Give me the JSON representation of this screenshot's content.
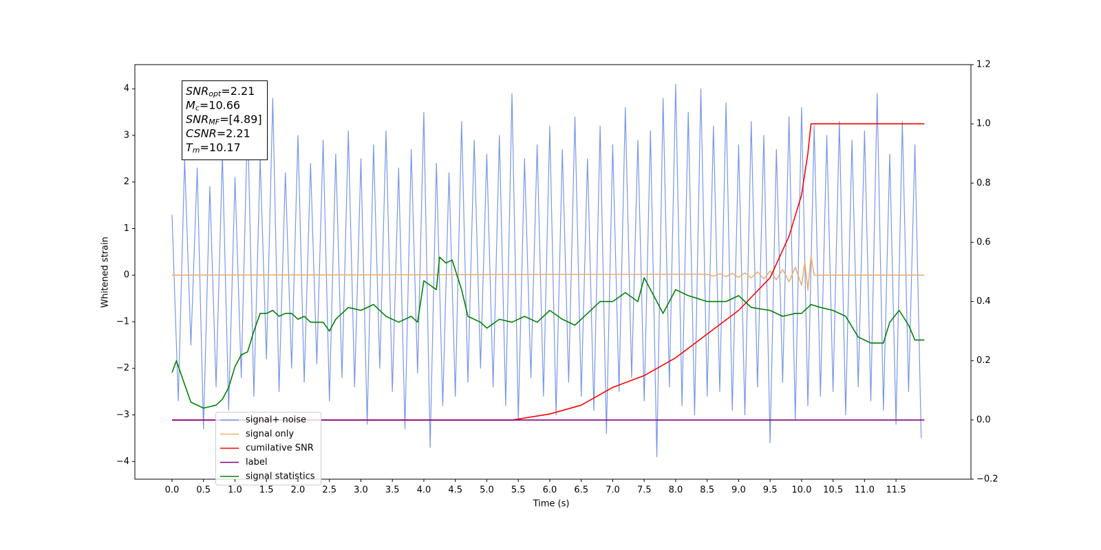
{
  "chart_data": {
    "type": "line",
    "x_label": "Time (s)",
    "y_label": "Whitened strain",
    "xlim": [
      -0.59,
      12.69
    ],
    "ylim": [
      -4.38,
      4.52
    ],
    "y2lim": [
      -0.2,
      1.2
    ],
    "xticks": [
      {
        "value": 0,
        "label": "0.0"
      },
      0.5,
      {
        "value": 1,
        "label": "1.0"
      },
      1.5,
      {
        "value": 2,
        "label": "2.0"
      },
      2.5,
      {
        "value": 3,
        "label": "3.0"
      },
      3.5,
      {
        "value": 4,
        "label": "4.0"
      },
      4.5,
      {
        "value": 5,
        "label": "5.0"
      },
      5.5,
      {
        "value": 6,
        "label": "6.0"
      },
      6.5,
      {
        "value": 7,
        "label": "7.0"
      },
      7.5,
      {
        "value": 8,
        "label": "8.0"
      },
      8.5,
      {
        "value": 9,
        "label": "9.0"
      },
      9.5,
      {
        "value": 10,
        "label": "10.0"
      },
      10.5,
      {
        "value": 11,
        "label": "11.0"
      },
      11.5
    ],
    "yticks": [
      {
        "value": -4,
        "label": "−4"
      },
      {
        "value": -3,
        "label": "−3"
      },
      {
        "value": -2,
        "label": "−2"
      },
      {
        "value": -1,
        "label": "−1"
      },
      0,
      1,
      2,
      3,
      4
    ],
    "y2ticks": [
      {
        "value": -0.2,
        "label": "−0.2"
      },
      {
        "value": 0,
        "label": "0.0"
      },
      0.2,
      0.4,
      0.6,
      0.8,
      {
        "value": 1,
        "label": "1.0"
      },
      1.2
    ],
    "annotations": [
      {
        "symbol": "SNR",
        "subscript": "opt",
        "text": "=2.21"
      },
      {
        "symbol": "M",
        "subscript": "c",
        "text": "=10.66"
      },
      {
        "symbol": "SNR",
        "subscript": "MF",
        "text": "=[4.89]"
      },
      {
        "symbol": "CSNR",
        "text": "=2.21"
      },
      {
        "symbol": "T",
        "subscript": "m",
        "text": "=10.17"
      }
    ],
    "series": [
      {
        "name": "signal+ noise",
        "color": "#7896e8",
        "x": [
          0.0,
          0.1,
          0.2,
          0.3,
          0.4,
          0.5,
          0.6,
          0.7,
          0.8,
          0.9,
          1.0,
          1.1,
          1.2,
          1.3,
          1.4,
          1.5,
          1.6,
          1.7,
          1.8,
          1.9,
          2.0,
          2.1,
          2.2,
          2.3,
          2.4,
          2.5,
          2.6,
          2.7,
          2.8,
          2.9,
          3.0,
          3.1,
          3.2,
          3.3,
          3.4,
          3.5,
          3.6,
          3.7,
          3.8,
          3.9,
          4.0,
          4.1,
          4.2,
          4.3,
          4.4,
          4.5,
          4.6,
          4.7,
          4.8,
          4.9,
          5.0,
          5.1,
          5.2,
          5.3,
          5.4,
          5.5,
          5.6,
          5.7,
          5.8,
          5.9,
          6.0,
          6.1,
          6.2,
          6.3,
          6.4,
          6.5,
          6.6,
          6.7,
          6.8,
          6.9,
          7.0,
          7.1,
          7.2,
          7.3,
          7.4,
          7.5,
          7.6,
          7.7,
          7.8,
          7.9,
          8.0,
          8.1,
          8.2,
          8.3,
          8.4,
          8.5,
          8.6,
          8.7,
          8.8,
          8.9,
          9.0,
          9.1,
          9.2,
          9.3,
          9.4,
          9.5,
          9.6,
          9.7,
          9.8,
          9.9,
          10.0,
          10.1,
          10.2,
          10.3,
          10.4,
          10.5,
          10.6,
          10.7,
          10.8,
          10.9,
          11.0,
          11.1,
          11.2,
          11.3,
          11.4,
          11.5,
          11.6,
          11.7,
          11.8,
          11.9
        ],
        "values": [
          1.3,
          -2.7,
          2.5,
          -1.5,
          2.3,
          -3.3,
          1.9,
          -2.4,
          2.6,
          -2.9,
          2.1,
          -2.2,
          3.4,
          -2.6,
          2.5,
          -1.8,
          3.8,
          -2.5,
          2.2,
          -2.0,
          3.0,
          -2.3,
          2.4,
          -1.9,
          2.9,
          -2.7,
          2.6,
          -2.2,
          3.1,
          -2.4,
          2.5,
          -3.2,
          2.8,
          -2.0,
          3.1,
          -2.5,
          2.3,
          -3.3,
          2.7,
          -2.1,
          3.5,
          -3.7,
          2.4,
          -2.8,
          2.2,
          -2.6,
          3.3,
          -2.3,
          2.9,
          -2.0,
          2.6,
          -2.4,
          3.0,
          -2.8,
          3.9,
          -3.1,
          2.5,
          -2.2,
          2.8,
          -2.6,
          3.2,
          -3.0,
          2.7,
          -2.3,
          3.4,
          -2.6,
          2.5,
          -2.9,
          3.2,
          -3.4,
          2.8,
          -2.5,
          3.6,
          -2.2,
          2.9,
          -2.7,
          3.1,
          -3.9,
          3.8,
          -2.4,
          4.1,
          -2.8,
          3.5,
          -3.0,
          4.0,
          -2.6,
          3.2,
          -2.5,
          3.7,
          -2.9,
          2.8,
          -3.0,
          3.3,
          -2.4,
          3.0,
          -3.6,
          2.7,
          -2.3,
          3.4,
          -3.1,
          3.6,
          -2.8,
          3.2,
          -2.6,
          3.0,
          -2.5,
          3.3,
          -3.0,
          2.9,
          -2.4,
          3.1,
          -2.7,
          3.9,
          -2.9,
          2.6,
          -3.2,
          3.3,
          -2.5,
          2.8,
          -3.5
        ]
      },
      {
        "name": "signal only",
        "color": "#e8b070",
        "x": [
          0.0,
          8.5,
          8.6,
          8.7,
          8.8,
          8.9,
          9.0,
          9.1,
          9.2,
          9.3,
          9.4,
          9.5,
          9.6,
          9.7,
          9.8,
          9.9,
          10.0,
          10.05,
          10.1,
          10.15,
          10.2,
          11.95
        ],
        "values": [
          0,
          0.02,
          -0.02,
          0.03,
          -0.03,
          0.04,
          -0.05,
          0.05,
          -0.06,
          0.07,
          -0.08,
          0.09,
          -0.1,
          0.12,
          -0.14,
          0.17,
          -0.22,
          0.28,
          -0.32,
          0.4,
          0,
          0
        ]
      },
      {
        "name": "cumilative SNR",
        "color": "#ff0000",
        "axis": "y2",
        "x": [
          0.0,
          5.4,
          6.0,
          6.5,
          7.0,
          7.5,
          8.0,
          8.5,
          9.0,
          9.5,
          9.8,
          10.0,
          10.1,
          10.15,
          11.95
        ],
        "values": [
          0,
          0,
          0.02,
          0.05,
          0.11,
          0.15,
          0.21,
          0.29,
          0.37,
          0.48,
          0.62,
          0.76,
          0.9,
          1.0,
          1.0
        ]
      },
      {
        "name": "label",
        "color": "#800080",
        "axis": "y2",
        "x": [
          0.0,
          11.95
        ],
        "values": [
          0,
          0
        ]
      },
      {
        "name": "signal statistics",
        "color": "#008000",
        "axis": "y2",
        "x": [
          0.0,
          0.07,
          0.2,
          0.3,
          0.5,
          0.7,
          0.8,
          0.9,
          1.0,
          1.1,
          1.2,
          1.3,
          1.4,
          1.5,
          1.6,
          1.7,
          1.8,
          1.9,
          2.0,
          2.1,
          2.2,
          2.4,
          2.5,
          2.6,
          2.8,
          3.0,
          3.2,
          3.4,
          3.6,
          3.8,
          3.9,
          4.0,
          4.2,
          4.25,
          4.35,
          4.45,
          4.6,
          4.7,
          4.9,
          5.0,
          5.2,
          5.4,
          5.6,
          5.8,
          6.0,
          6.2,
          6.4,
          6.6,
          6.8,
          7.0,
          7.2,
          7.4,
          7.5,
          7.7,
          7.8,
          8.0,
          8.2,
          8.5,
          8.8,
          9.0,
          9.2,
          9.5,
          9.7,
          9.9,
          10.0,
          10.15,
          10.3,
          10.5,
          10.7,
          10.9,
          11.1,
          11.3,
          11.4,
          11.55,
          11.7,
          11.8,
          11.95
        ],
        "values": [
          0.16,
          0.2,
          0.12,
          0.06,
          0.04,
          0.05,
          0.07,
          0.11,
          0.18,
          0.22,
          0.23,
          0.3,
          0.36,
          0.36,
          0.37,
          0.35,
          0.36,
          0.36,
          0.34,
          0.35,
          0.33,
          0.33,
          0.3,
          0.34,
          0.38,
          0.37,
          0.39,
          0.35,
          0.33,
          0.35,
          0.33,
          0.47,
          0.44,
          0.55,
          0.53,
          0.54,
          0.44,
          0.35,
          0.33,
          0.31,
          0.34,
          0.33,
          0.35,
          0.33,
          0.37,
          0.34,
          0.32,
          0.36,
          0.4,
          0.4,
          0.43,
          0.4,
          0.48,
          0.4,
          0.36,
          0.44,
          0.42,
          0.4,
          0.4,
          0.42,
          0.38,
          0.37,
          0.35,
          0.36,
          0.36,
          0.39,
          0.38,
          0.37,
          0.35,
          0.28,
          0.26,
          0.26,
          0.33,
          0.37,
          0.32,
          0.27,
          0.27
        ]
      }
    ]
  }
}
